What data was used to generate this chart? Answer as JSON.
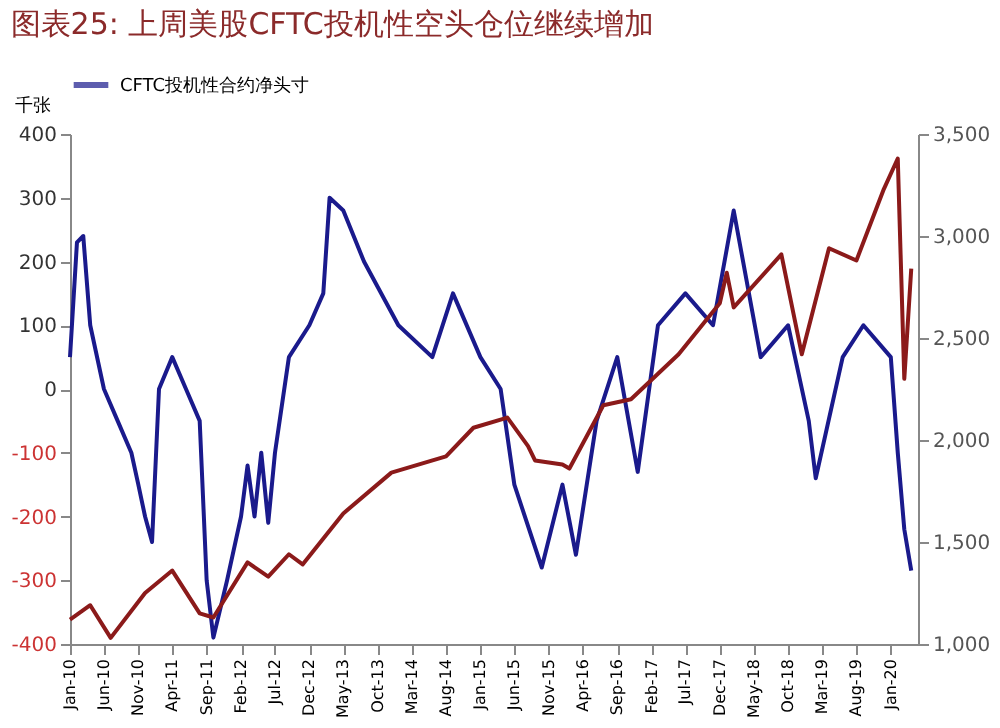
{
  "chart_data": {
    "type": "line",
    "title": "图表25: 上周美股CFTC投机性空头仓位继续增加",
    "ylabel": "千张",
    "xlim": [
      "2010-01",
      "2020-05"
    ],
    "xticks": [
      {
        "value": "2010-01",
        "label": "Jan-10"
      },
      {
        "value": "2010-06",
        "label": "Jun-10"
      },
      {
        "value": "2010-11",
        "label": "Nov-10"
      },
      {
        "value": "2011-04",
        "label": "Apr-11"
      },
      {
        "value": "2011-09",
        "label": "Sep-11"
      },
      {
        "value": "2012-02",
        "label": "Feb-12"
      },
      {
        "value": "2012-07",
        "label": "Jul-12"
      },
      {
        "value": "2012-12",
        "label": "Dec-12"
      },
      {
        "value": "2013-05",
        "label": "May-13"
      },
      {
        "value": "2013-10",
        "label": "Oct-13"
      },
      {
        "value": "2014-03",
        "label": "Mar-14"
      },
      {
        "value": "2014-08",
        "label": "Aug-14"
      },
      {
        "value": "2015-01",
        "label": "Jan-15"
      },
      {
        "value": "2015-06",
        "label": "Jun-15"
      },
      {
        "value": "2015-11",
        "label": "Nov-15"
      },
      {
        "value": "2016-04",
        "label": "Apr-16"
      },
      {
        "value": "2016-09",
        "label": "Sep-16"
      },
      {
        "value": "2017-02",
        "label": "Feb-17"
      },
      {
        "value": "2017-07",
        "label": "Jul-17"
      },
      {
        "value": "2017-12",
        "label": "Dec-17"
      },
      {
        "value": "2018-05",
        "label": "May-18"
      },
      {
        "value": "2018-10",
        "label": "Oct-18"
      },
      {
        "value": "2019-03",
        "label": "Mar-19"
      },
      {
        "value": "2019-08",
        "label": "Aug-19"
      },
      {
        "value": "2020-01",
        "label": "Jan-20"
      }
    ],
    "ylim": [
      -400,
      400
    ],
    "yticks": [
      -400,
      -300,
      -200,
      -100,
      0,
      100,
      200,
      300,
      400
    ],
    "y2lim": [
      1000,
      3500
    ],
    "y2ticks": [
      {
        "value": 1000,
        "label": "1,000"
      },
      {
        "value": 1500,
        "label": "1,500"
      },
      {
        "value": 2000,
        "label": "2,000"
      },
      {
        "value": 2500,
        "label": "2,500"
      },
      {
        "value": 3000,
        "label": "3,000"
      },
      {
        "value": 3500,
        "label": "3,500"
      }
    ],
    "grid": false,
    "legend": "top",
    "marker": "none",
    "line_style": "solid",
    "series": [
      {
        "name": "CFTC投机性合约净头寸",
        "color": "#1a1a8c",
        "x": [
          "2010-01",
          "2010-02",
          "2010-03",
          "2010-04",
          "2010-06",
          "2010-08",
          "2010-10",
          "2010-11",
          "2010-12",
          "2011-01",
          "2011-02",
          "2011-04",
          "2011-06",
          "2011-08",
          "2011-09",
          "2011-10",
          "2011-12",
          "2012-02",
          "2012-03",
          "2012-04",
          "2012-05",
          "2012-06",
          "2012-07",
          "2012-09",
          "2012-12",
          "2013-02",
          "2013-03",
          "2013-05",
          "2013-08",
          "2014-01",
          "2014-06",
          "2014-09",
          "2015-01",
          "2015-04",
          "2015-06",
          "2015-10",
          "2016-01",
          "2016-03",
          "2016-06",
          "2016-09",
          "2016-12",
          "2017-03",
          "2017-07",
          "2017-11",
          "2018-02",
          "2018-06",
          "2018-10",
          "2019-01",
          "2019-02",
          "2019-06",
          "2019-09",
          "2020-01",
          "2020-02",
          "2020-03",
          "2020-04"
        ],
        "values": [
          50,
          230,
          240,
          100,
          0,
          -50,
          -100,
          -150,
          -200,
          -240,
          0,
          50,
          0,
          -50,
          -300,
          -390,
          -300,
          -200,
          -120,
          -200,
          -100,
          -210,
          -100,
          50,
          100,
          150,
          300,
          280,
          200,
          100,
          50,
          150,
          50,
          0,
          -150,
          -280,
          -150,
          -260,
          -50,
          50,
          -130,
          100,
          150,
          100,
          280,
          50,
          100,
          -50,
          -140,
          50,
          100,
          50,
          -100,
          -220,
          -285
        ]
      },
      {
        "axis": "y2",
        "color": "#8b1a1a",
        "x": [
          "2010-01",
          "2010-04",
          "2010-07",
          "2010-12",
          "2011-04",
          "2011-08",
          "2011-10",
          "2012-03",
          "2012-06",
          "2012-09",
          "2012-11",
          "2013-05",
          "2013-12",
          "2014-08",
          "2014-12",
          "2015-05",
          "2015-08",
          "2015-09",
          "2016-01",
          "2016-02",
          "2016-07",
          "2016-11",
          "2017-06",
          "2017-12",
          "2018-01",
          "2018-02",
          "2018-09",
          "2018-12",
          "2019-04",
          "2019-08",
          "2019-12",
          "2020-02",
          "2020-03",
          "2020-04"
        ],
        "values": [
          1120,
          1190,
          1030,
          1250,
          1360,
          1150,
          1130,
          1400,
          1330,
          1440,
          1390,
          1640,
          1840,
          1920,
          2060,
          2110,
          1970,
          1900,
          1880,
          1860,
          2170,
          2200,
          2420,
          2670,
          2820,
          2650,
          2910,
          2420,
          2940,
          2880,
          3230,
          3380,
          2300,
          2840
        ]
      }
    ]
  }
}
